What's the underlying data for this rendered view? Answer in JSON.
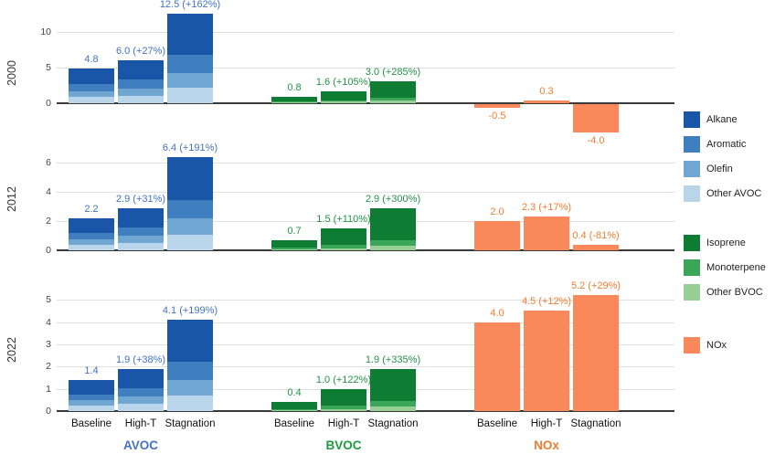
{
  "years": [
    "2000",
    "2012",
    "2022"
  ],
  "categories": [
    "Baseline",
    "High-T",
    "Stagnation"
  ],
  "group_labels": [
    {
      "text": "AVOC",
      "color": "#4472C4"
    },
    {
      "text": "BVOC",
      "color": "#1F9A3F"
    },
    {
      "text": "NOx",
      "color": "#ED7D31"
    }
  ],
  "legend": {
    "groups": [
      {
        "items": [
          {
            "label": "Alkane",
            "color": "#1A56A8"
          },
          {
            "label": "Aromatic",
            "color": "#3F7FBF"
          },
          {
            "label": "Olefin",
            "color": "#6FA6D2"
          },
          {
            "label": "Other AVOC",
            "color": "#B9D5EA"
          }
        ]
      },
      {
        "items": [
          {
            "label": "Isoprene",
            "color": "#0E7D33"
          },
          {
            "label": "Monoterpene",
            "color": "#3BA558"
          },
          {
            "label": "Other BVOC",
            "color": "#97D096"
          }
        ]
      },
      {
        "items": [
          {
            "label": "NOx",
            "color": "#F9885A"
          }
        ]
      }
    ]
  },
  "chart_data": {
    "type": "bar",
    "categories": [
      "Baseline",
      "High-T",
      "Stagnation"
    ],
    "groups": [
      "AVOC",
      "BVOC",
      "NOx"
    ],
    "legend_position": "right",
    "grid": true,
    "panels": [
      {
        "year": "2000",
        "yticks": [
          0,
          5,
          10
        ],
        "ylim": [
          -4.8,
          13.2
        ],
        "series": [
          {
            "group": "AVOC",
            "stacked": true,
            "values": [
              4.8,
              6.0,
              12.5
            ],
            "labels": [
              "4.8",
              "6.0 (+27%)",
              "12.5 (+162%)"
            ]
          },
          {
            "group": "BVOC",
            "stacked": true,
            "values": [
              0.8,
              1.6,
              3.0
            ],
            "labels": [
              "0.8",
              "1.6 (+105%)",
              "3.0 (+285%)"
            ]
          },
          {
            "group": "NOx",
            "stacked": false,
            "values": [
              -0.5,
              0.3,
              -4.0
            ],
            "labels": [
              "-0.5",
              "0.3",
              "-4.0"
            ]
          }
        ]
      },
      {
        "year": "2012",
        "yticks": [
          0,
          2,
          4,
          6
        ],
        "ylim": [
          0,
          7.0
        ],
        "series": [
          {
            "group": "AVOC",
            "stacked": true,
            "values": [
              2.2,
              2.9,
              6.4
            ],
            "labels": [
              "2.2",
              "2.9 (+31%)",
              "6.4 (+191%)"
            ]
          },
          {
            "group": "BVOC",
            "stacked": true,
            "values": [
              0.7,
              1.5,
              2.9
            ],
            "labels": [
              "0.7",
              "1.5 (+110%)",
              "2.9 (+300%)"
            ]
          },
          {
            "group": "NOx",
            "stacked": false,
            "values": [
              2.0,
              2.3,
              0.4
            ],
            "labels": [
              "2.0",
              "2.3 (+17%)",
              "0.4 (-81%)"
            ]
          }
        ]
      },
      {
        "year": "2022",
        "yticks": [
          0,
          1,
          2,
          3,
          4,
          5
        ],
        "ylim": [
          0,
          5.5
        ],
        "series": [
          {
            "group": "AVOC",
            "stacked": true,
            "values": [
              1.4,
              1.9,
              4.1
            ],
            "labels": [
              "1.4",
              "1.9 (+38%)",
              "4.1 (+199%)"
            ]
          },
          {
            "group": "BVOC",
            "stacked": true,
            "values": [
              0.4,
              1.0,
              1.9
            ],
            "labels": [
              "0.4",
              "1.0 (+122%)",
              "1.9 (+335%)"
            ]
          },
          {
            "group": "NOx",
            "stacked": false,
            "values": [
              4.0,
              4.5,
              5.2
            ],
            "labels": [
              "4.0",
              "4.5 (+12%)",
              "5.2 (+29%)"
            ]
          }
        ]
      }
    ],
    "stack_order_bottom_to_top": {
      "AVOC": [
        {
          "name": "Other AVOC",
          "fraction": 0.17,
          "color": "#B9D5EA"
        },
        {
          "name": "Olefin",
          "fraction": 0.17,
          "color": "#6FA6D2"
        },
        {
          "name": "Aromatic",
          "fraction": 0.2,
          "color": "#3F7FBF"
        },
        {
          "name": "Alkane",
          "fraction": 0.46,
          "color": "#1A56A8"
        }
      ],
      "BVOC": [
        {
          "name": "Other BVOC",
          "fraction": 0.1,
          "color": "#97D096"
        },
        {
          "name": "Monoterpene",
          "fraction": 0.14,
          "color": "#3BA558"
        },
        {
          "name": "Isoprene",
          "fraction": 0.76,
          "color": "#0E7D33"
        }
      ],
      "NOx": [
        {
          "name": "NOx",
          "fraction": 1.0,
          "color": "#F9885A"
        }
      ]
    },
    "label_colors": {
      "AVOC": "#4472C4",
      "BVOC": "#229447",
      "NOx": "#ED7D31"
    }
  }
}
